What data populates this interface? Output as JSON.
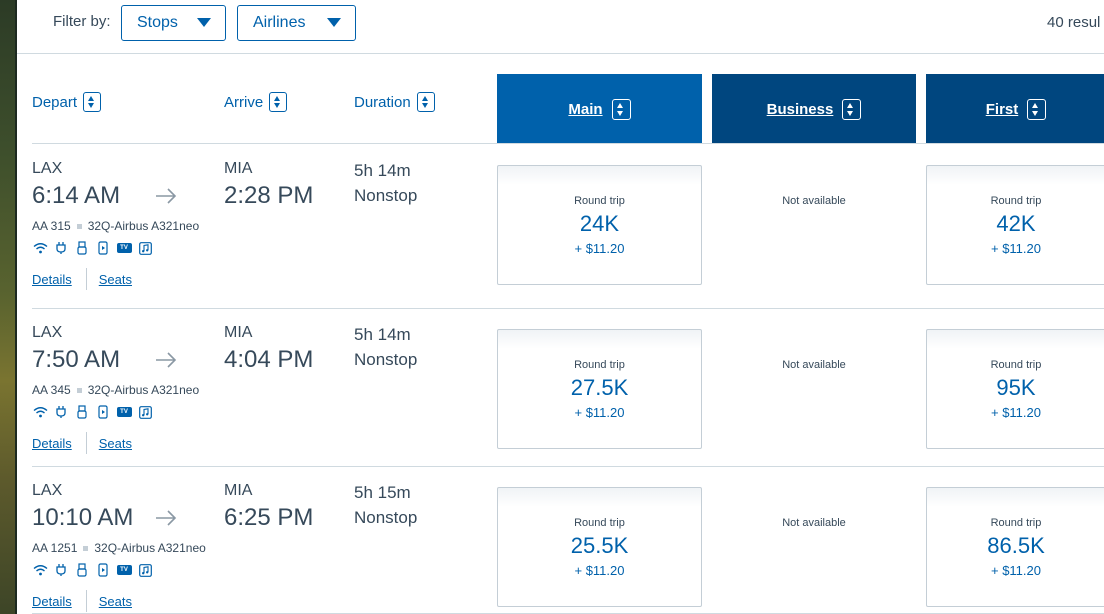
{
  "filter": {
    "label": "Filter by:",
    "stops_label": "Stops",
    "airlines_label": "Airlines",
    "results_count": "40 resul"
  },
  "columns": {
    "depart": "Depart",
    "arrive": "Arrive",
    "duration": "Duration"
  },
  "cabins": {
    "main": "Main",
    "business": "Business",
    "first": "First"
  },
  "flights": [
    {
      "depart_airport": "LAX",
      "depart_time": "6:14 AM",
      "arrive_airport": "MIA",
      "arrive_time": "2:28 PM",
      "duration": "5h 14m",
      "stops": "Nonstop",
      "flight_number": "AA 315",
      "aircraft": "32Q-Airbus A321neo",
      "details_label": "Details",
      "seats_label": "Seats",
      "main": {
        "label": "Round trip",
        "miles": "24K",
        "tax": "+ $11.20"
      },
      "business": {
        "label": "Not available"
      },
      "first": {
        "label": "Round trip",
        "miles": "42K",
        "tax": "+ $11.20"
      }
    },
    {
      "depart_airport": "LAX",
      "depart_time": "7:50 AM",
      "arrive_airport": "MIA",
      "arrive_time": "4:04 PM",
      "duration": "5h 14m",
      "stops": "Nonstop",
      "flight_number": "AA 345",
      "aircraft": "32Q-Airbus A321neo",
      "details_label": "Details",
      "seats_label": "Seats",
      "main": {
        "label": "Round trip",
        "miles": "27.5K",
        "tax": "+ $11.20"
      },
      "business": {
        "label": "Not available"
      },
      "first": {
        "label": "Round trip",
        "miles": "95K",
        "tax": "+ $11.20"
      }
    },
    {
      "depart_airport": "LAX",
      "depart_time": "10:10 AM",
      "arrive_airport": "MIA",
      "arrive_time": "6:25 PM",
      "duration": "5h 15m",
      "stops": "Nonstop",
      "flight_number": "AA 1251",
      "aircraft": "32Q-Airbus A321neo",
      "details_label": "Details",
      "seats_label": "Seats",
      "main": {
        "label": "Round trip",
        "miles": "25.5K",
        "tax": "+ $11.20"
      },
      "business": {
        "label": "Not available"
      },
      "first": {
        "label": "Round trip",
        "miles": "86.5K",
        "tax": "+ $11.20"
      }
    }
  ],
  "amenity_icons": [
    "wifi-icon",
    "power-outlet-icon",
    "usb-icon",
    "mobile-entertainment-icon",
    "tv-icon",
    "music-icon"
  ],
  "colors": {
    "link_blue": "#0061ab",
    "main_tab": "#0061ab",
    "cabin_tab": "#00467f",
    "text": "#36495a"
  }
}
